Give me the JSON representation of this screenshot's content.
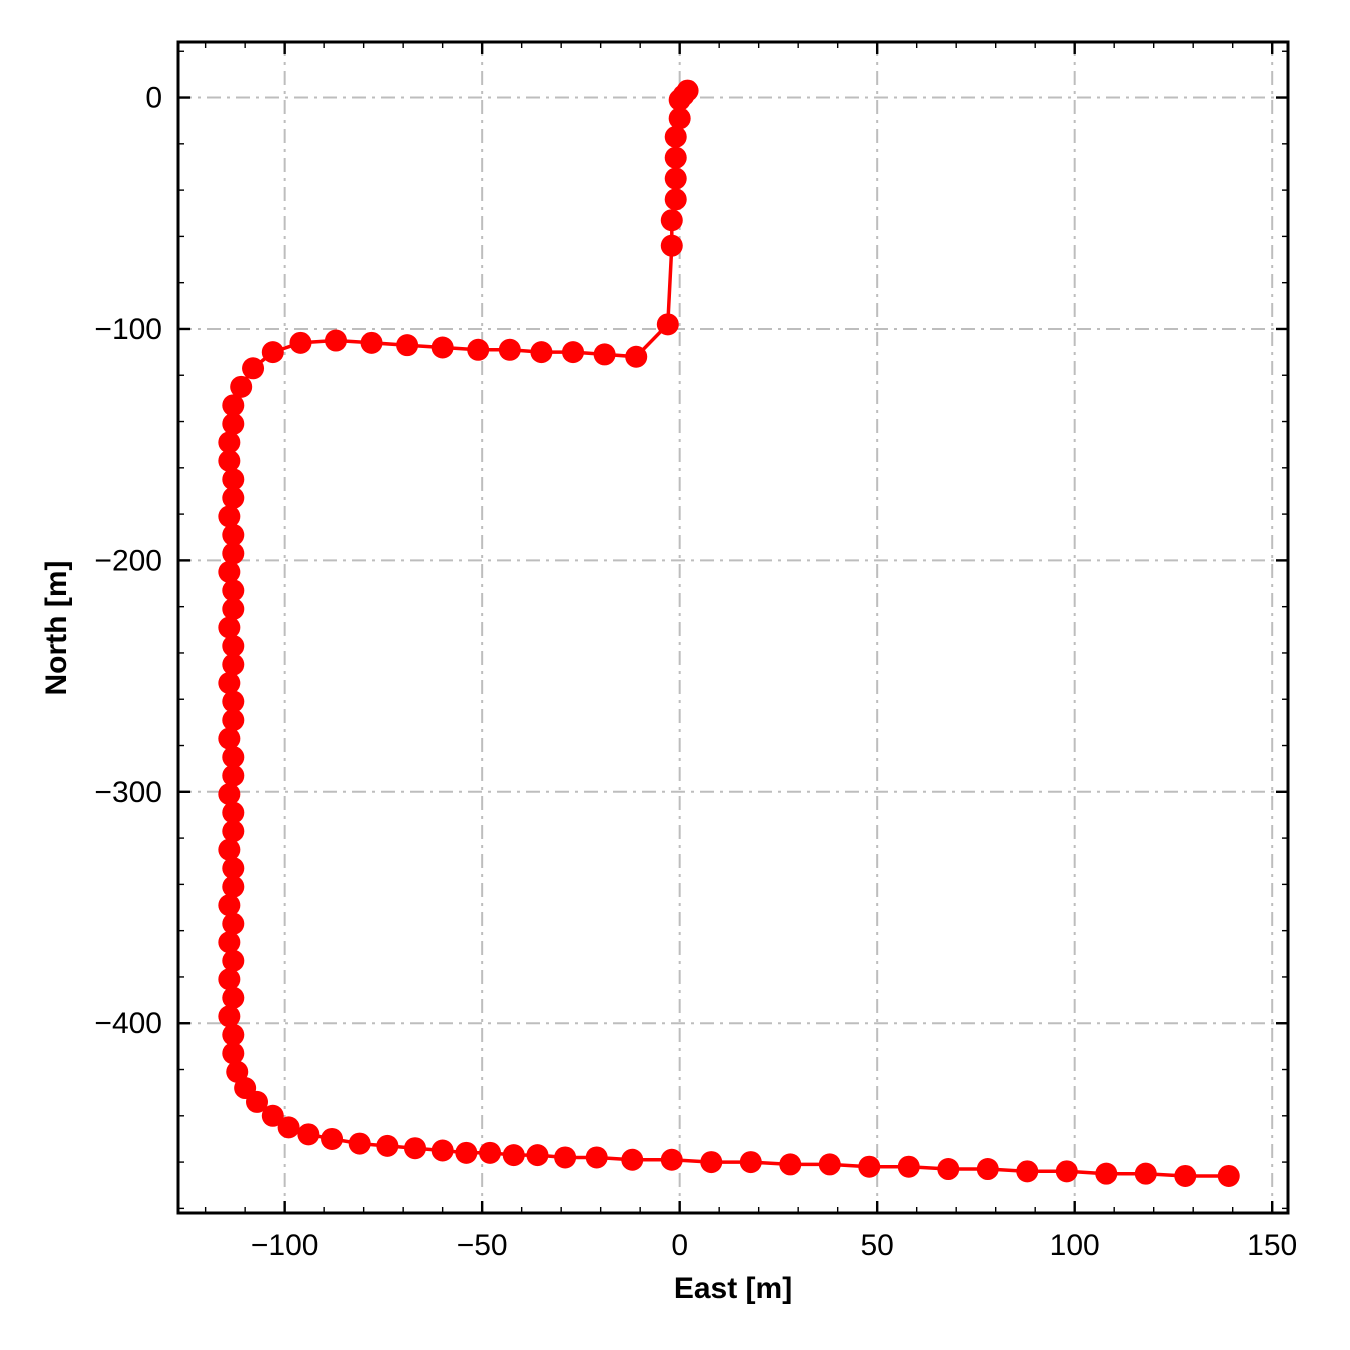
{
  "figure": {
    "background": "#ffffff",
    "frame_color": "#000000",
    "tick_color": "#000000"
  },
  "chart_data": {
    "type": "line",
    "title": "",
    "xlabel": "East [m]",
    "ylabel": "North [m]",
    "xlim": [
      -127,
      154
    ],
    "ylim": [
      -482,
      24
    ],
    "xticks": [
      -100,
      -50,
      0,
      50,
      100,
      150
    ],
    "yticks": [
      0,
      -100,
      -200,
      -300,
      -400
    ],
    "x_minor_step": 10,
    "y_minor_step": 20,
    "grid": {
      "on": true,
      "style": "dash-dot",
      "color": "#bdbdbd"
    },
    "legend": null,
    "series": [
      {
        "name": "trajectory",
        "color": "#ff0000",
        "marker": "circle",
        "marker_size": 11,
        "line_width": 3.5,
        "points": [
          [
            2,
            3
          ],
          [
            1,
            1
          ],
          [
            0,
            -1
          ],
          [
            0,
            -9
          ],
          [
            -1,
            -17
          ],
          [
            -1,
            -26
          ],
          [
            -1,
            -35
          ],
          [
            -1,
            -44
          ],
          [
            -2,
            -53
          ],
          [
            -2,
            -64
          ],
          [
            -3,
            -98
          ],
          [
            -11,
            -112
          ],
          [
            -19,
            -111
          ],
          [
            -27,
            -110
          ],
          [
            -35,
            -110
          ],
          [
            -43,
            -109
          ],
          [
            -51,
            -109
          ],
          [
            -60,
            -108
          ],
          [
            -69,
            -107
          ],
          [
            -78,
            -106
          ],
          [
            -87,
            -105
          ],
          [
            -96,
            -106
          ],
          [
            -103,
            -110
          ],
          [
            -108,
            -117
          ],
          [
            -111,
            -125
          ],
          [
            -113,
            -133
          ],
          [
            -113,
            -141
          ],
          [
            -114,
            -149
          ],
          [
            -114,
            -157
          ],
          [
            -113,
            -165
          ],
          [
            -113,
            -173
          ],
          [
            -114,
            -181
          ],
          [
            -113,
            -189
          ],
          [
            -113,
            -197
          ],
          [
            -114,
            -205
          ],
          [
            -113,
            -213
          ],
          [
            -113,
            -221
          ],
          [
            -114,
            -229
          ],
          [
            -113,
            -237
          ],
          [
            -113,
            -245
          ],
          [
            -114,
            -253
          ],
          [
            -113,
            -261
          ],
          [
            -113,
            -269
          ],
          [
            -114,
            -277
          ],
          [
            -113,
            -285
          ],
          [
            -113,
            -293
          ],
          [
            -114,
            -301
          ],
          [
            -113,
            -309
          ],
          [
            -113,
            -317
          ],
          [
            -114,
            -325
          ],
          [
            -113,
            -333
          ],
          [
            -113,
            -341
          ],
          [
            -114,
            -349
          ],
          [
            -113,
            -357
          ],
          [
            -114,
            -365
          ],
          [
            -113,
            -373
          ],
          [
            -114,
            -381
          ],
          [
            -113,
            -389
          ],
          [
            -114,
            -397
          ],
          [
            -113,
            -405
          ],
          [
            -113,
            -413
          ],
          [
            -112,
            -421
          ],
          [
            -110,
            -428
          ],
          [
            -107,
            -434
          ],
          [
            -103,
            -440
          ],
          [
            -99,
            -445
          ],
          [
            -94,
            -448
          ],
          [
            -88,
            -450
          ],
          [
            -81,
            -452
          ],
          [
            -74,
            -453
          ],
          [
            -67,
            -454
          ],
          [
            -60,
            -455
          ],
          [
            -54,
            -456
          ],
          [
            -48,
            -456
          ],
          [
            -42,
            -457
          ],
          [
            -36,
            -457
          ],
          [
            -29,
            -458
          ],
          [
            -21,
            -458
          ],
          [
            -12,
            -459
          ],
          [
            -2,
            -459
          ],
          [
            8,
            -460
          ],
          [
            18,
            -460
          ],
          [
            28,
            -461
          ],
          [
            38,
            -461
          ],
          [
            48,
            -462
          ],
          [
            58,
            -462
          ],
          [
            68,
            -463
          ],
          [
            78,
            -463
          ],
          [
            88,
            -464
          ],
          [
            98,
            -464
          ],
          [
            108,
            -465
          ],
          [
            118,
            -465
          ],
          [
            128,
            -466
          ],
          [
            139,
            -466
          ]
        ]
      }
    ]
  }
}
